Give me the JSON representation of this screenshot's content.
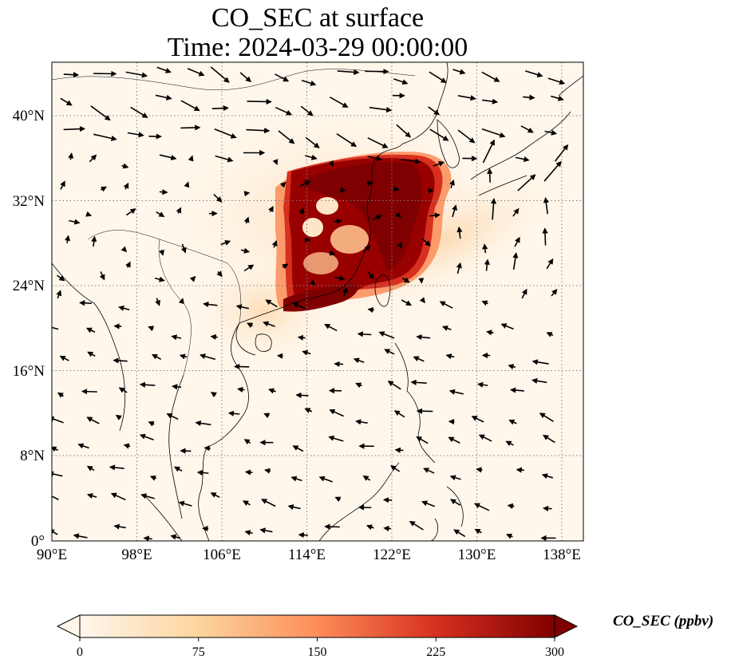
{
  "title_line1": "CO_SEC at surface",
  "title_line2": "Time: 2024-03-29 00:00:00",
  "lon_ticks": [
    "90°E",
    "98°E",
    "106°E",
    "114°E",
    "122°E",
    "130°E",
    "138°E"
  ],
  "lat_ticks": [
    "0°",
    "8°N",
    "16°N",
    "24°N",
    "32°N",
    "40°N"
  ],
  "colorbar": {
    "label": "CO_SEC (ppbv)",
    "ticks": [
      "0",
      "75",
      "150",
      "225",
      "300"
    ],
    "min": 0,
    "max": 300,
    "extend": "both",
    "colormap": "OrRd",
    "colors": [
      "#fff7ec",
      "#fdd49e",
      "#fc8d59",
      "#d7301f",
      "#7f0000"
    ]
  },
  "map": {
    "lon_range": [
      90,
      139.5
    ],
    "lat_range": [
      0,
      45
    ],
    "gridlines": true,
    "coastlines": true,
    "overlay": "wind vectors",
    "plume_color": "#7f0000"
  }
}
